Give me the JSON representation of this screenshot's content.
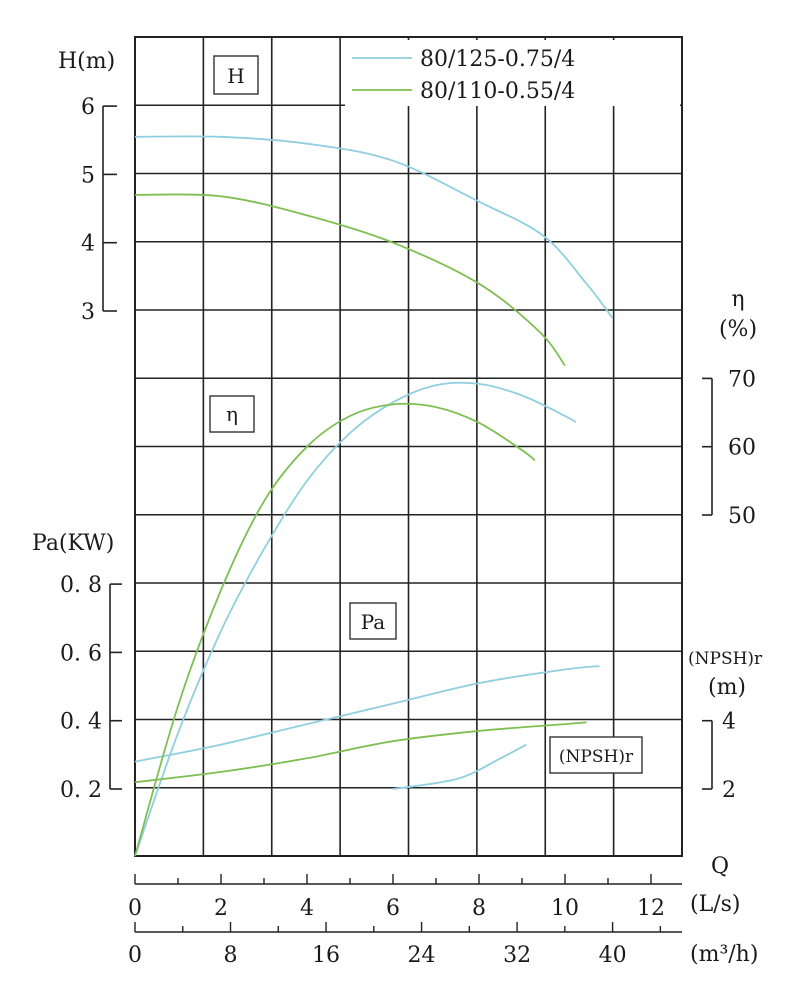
{
  "chart_data": {
    "type": "line",
    "legend": {
      "placement": "top-right",
      "items": [
        {
          "name": "80/125-0.75/4",
          "color": "#8fcfdf"
        },
        {
          "name": "80/110-0.55/4",
          "color": "#7fbf52"
        }
      ]
    },
    "box_labels": {
      "H": "H",
      "eta": "η",
      "Pa": "Pa",
      "npsh": "(NPSH)r"
    },
    "axes": {
      "H": {
        "label": "H(m)",
        "ticks": [
          "3",
          "4",
          "5",
          "6"
        ],
        "range": [
          3,
          6
        ]
      },
      "eta": {
        "label_symbol": "η",
        "label_unit": "(%)",
        "ticks": [
          "50",
          "60",
          "70"
        ],
        "range": [
          50,
          70
        ]
      },
      "Pa": {
        "label": "Pa(KW)",
        "ticks": [
          "0.2",
          "0.4",
          "0.6",
          "0.8"
        ],
        "range": [
          0.2,
          0.8
        ]
      },
      "npsh": {
        "label": "(NPSH)r",
        "label_unit": "(m)",
        "ticks": [
          "2",
          "4"
        ],
        "range": [
          2,
          4
        ]
      },
      "Q": {
        "label": "Q"
      },
      "Q_ls": {
        "unit": "(L/s)",
        "ticks": [
          "0",
          "2",
          "4",
          "6",
          "8",
          "10",
          "12"
        ],
        "range": [
          0,
          12
        ]
      },
      "Q_m3h": {
        "unit": "(m³/h)",
        "ticks": [
          "0",
          "8",
          "16",
          "24",
          "32",
          "40"
        ],
        "range": [
          0,
          40
        ]
      }
    },
    "grid": true,
    "series": [
      {
        "name": "80/125-0.75/4",
        "color": "#8fcfdf",
        "H": [
          [
            0,
            5.55
          ],
          [
            2,
            5.55
          ],
          [
            4,
            5.45
          ],
          [
            6,
            5.2
          ],
          [
            8,
            4.6
          ],
          [
            9.5,
            4.1
          ],
          [
            10.5,
            3.4
          ],
          [
            11.1,
            2.9
          ]
        ],
        "eta": [
          [
            0,
            0
          ],
          [
            1,
            18
          ],
          [
            2,
            33
          ],
          [
            3,
            45
          ],
          [
            4,
            55
          ],
          [
            5,
            62
          ],
          [
            6,
            66.5
          ],
          [
            7,
            69
          ],
          [
            8,
            69.2
          ],
          [
            9,
            67.5
          ],
          [
            10,
            64.5
          ],
          [
            10.25,
            63.6
          ]
        ],
        "Pa": [
          [
            0,
            0.28
          ],
          [
            2,
            0.33
          ],
          [
            4,
            0.39
          ],
          [
            6,
            0.45
          ],
          [
            8,
            0.51
          ],
          [
            10,
            0.55
          ],
          [
            10.8,
            0.56
          ]
        ],
        "npsh": [
          [
            6,
            2.0
          ],
          [
            7.5,
            2.3
          ],
          [
            8.5,
            2.9
          ],
          [
            9.1,
            3.3
          ]
        ]
      },
      {
        "name": "80/110-0.55/4",
        "color": "#7fbf52",
        "H": [
          [
            0,
            4.7
          ],
          [
            2,
            4.68
          ],
          [
            4,
            4.4
          ],
          [
            6,
            4.0
          ],
          [
            8,
            3.4
          ],
          [
            9.4,
            2.7
          ],
          [
            10,
            2.2
          ]
        ],
        "eta": [
          [
            0,
            0
          ],
          [
            1,
            22
          ],
          [
            2,
            39
          ],
          [
            3,
            52
          ],
          [
            4,
            60
          ],
          [
            5,
            64.5
          ],
          [
            6,
            66.2
          ],
          [
            7,
            65.8
          ],
          [
            8,
            63.5
          ],
          [
            9,
            59.5
          ],
          [
            9.3,
            58
          ]
        ],
        "Pa": [
          [
            0,
            0.22
          ],
          [
            2,
            0.25
          ],
          [
            4,
            0.29
          ],
          [
            6,
            0.34
          ],
          [
            8,
            0.37
          ],
          [
            10,
            0.39
          ],
          [
            10.5,
            0.395
          ]
        ]
      }
    ]
  }
}
